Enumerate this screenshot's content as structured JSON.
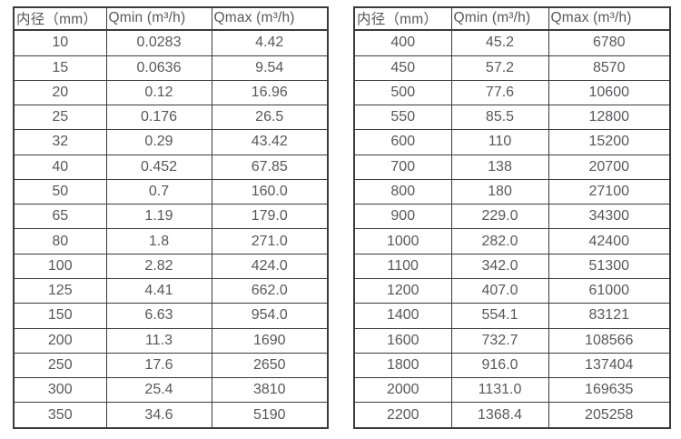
{
  "colors": {
    "border": "#3b3b3b",
    "text": "#58585a",
    "background": "#ffffff"
  },
  "chart_data": [
    {
      "type": "table",
      "name": "flow-range-table-dn10-350",
      "columns": [
        "内径（mm）",
        "Qmin (m³/h)",
        "Qmax (m³/h)"
      ],
      "rows": [
        [
          "10",
          "0.0283",
          "4.42"
        ],
        [
          "15",
          "0.0636",
          "9.54"
        ],
        [
          "20",
          "0.12",
          "16.96"
        ],
        [
          "25",
          "0.176",
          "26.5"
        ],
        [
          "32",
          "0.29",
          "43.42"
        ],
        [
          "40",
          "0.452",
          "67.85"
        ],
        [
          "50",
          "0.7",
          "160.0"
        ],
        [
          "65",
          "1.19",
          "179.0"
        ],
        [
          "80",
          "1.8",
          "271.0"
        ],
        [
          "100",
          "2.82",
          "424.0"
        ],
        [
          "125",
          "4.41",
          "662.0"
        ],
        [
          "150",
          "6.63",
          "954.0"
        ],
        [
          "200",
          "11.3",
          "1690"
        ],
        [
          "250",
          "17.6",
          "2650"
        ],
        [
          "300",
          "25.4",
          "3810"
        ],
        [
          "350",
          "34.6",
          "5190"
        ]
      ]
    },
    {
      "type": "table",
      "name": "flow-range-table-dn400-2200",
      "columns": [
        "内径（mm）",
        "Qmin (m³/h)",
        "Qmax (m³/h)"
      ],
      "rows": [
        [
          "400",
          "45.2",
          "6780"
        ],
        [
          "450",
          "57.2",
          "8570"
        ],
        [
          "500",
          "77.6",
          "10600"
        ],
        [
          "550",
          "85.5",
          "12800"
        ],
        [
          "600",
          "110",
          "15200"
        ],
        [
          "700",
          "138",
          "20700"
        ],
        [
          "800",
          "180",
          "27100"
        ],
        [
          "900",
          "229.0",
          "34300"
        ],
        [
          "1000",
          "282.0",
          "42400"
        ],
        [
          "1100",
          "342.0",
          "51300"
        ],
        [
          "1200",
          "407.0",
          "61000"
        ],
        [
          "1400",
          "554.1",
          "83121"
        ],
        [
          "1600",
          "732.7",
          "108566"
        ],
        [
          "1800",
          "916.0",
          "137404"
        ],
        [
          "2000",
          "1131.0",
          "169635"
        ],
        [
          "2200",
          "1368.4",
          "205258"
        ]
      ]
    }
  ]
}
